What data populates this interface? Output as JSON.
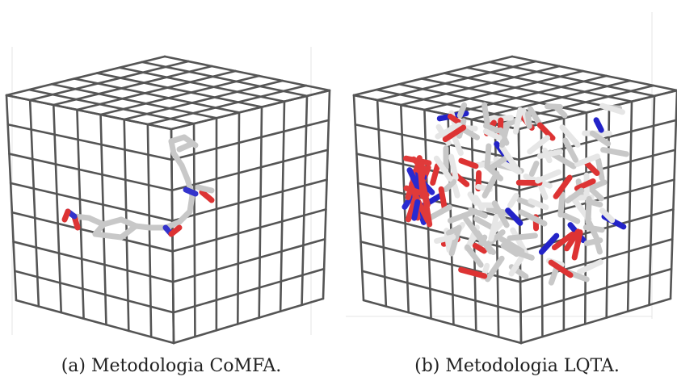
{
  "figure": {
    "panels": [
      {
        "caption": "(a) Metodologia CoMFA."
      },
      {
        "caption": "(b) Metodologia LQTA."
      }
    ]
  }
}
